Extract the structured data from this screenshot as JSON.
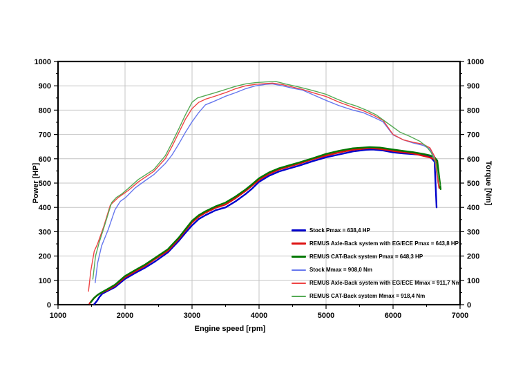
{
  "page": {
    "background": "#ffffff"
  },
  "axes": {
    "xlabel": "Engine speed [rpm]",
    "ylabel_left": "Power [HP]",
    "ylabel_right": "Torque [Nm]"
  },
  "chart_data": {
    "type": "line",
    "title": "",
    "xlabel": "Engine speed [rpm]",
    "ylabel_left": "Power [HP]",
    "ylabel_right": "Torque [Nm]",
    "xlim": [
      1000,
      7000
    ],
    "ylim_left": [
      0,
      1000
    ],
    "ylim_right": [
      0,
      1000
    ],
    "x_ticks": [
      1000,
      2000,
      3000,
      4000,
      5000,
      6000,
      7000
    ],
    "x_minor_step": 500,
    "y_ticks": [
      0,
      100,
      200,
      300,
      400,
      500,
      600,
      700,
      800,
      900,
      1000
    ],
    "y_minor_step": 50,
    "grid": true,
    "grid_color": "#c4c4c4",
    "border_color": "#000000",
    "legend_position": "inside-bottom-right",
    "series": [
      {
        "name": "Stock Pmax = 638,4 HP",
        "axis": "left",
        "unit": "HP",
        "color": "#0000cc",
        "width": 2.4,
        "points": [
          [
            1540,
            2
          ],
          [
            1580,
            15
          ],
          [
            1620,
            32
          ],
          [
            1660,
            45
          ],
          [
            1750,
            58
          ],
          [
            1850,
            72
          ],
          [
            2000,
            106
          ],
          [
            2150,
            130
          ],
          [
            2300,
            152
          ],
          [
            2450,
            178
          ],
          [
            2640,
            215
          ],
          [
            2800,
            262
          ],
          [
            2900,
            295
          ],
          [
            3000,
            326
          ],
          [
            3100,
            352
          ],
          [
            3200,
            368
          ],
          [
            3350,
            388
          ],
          [
            3500,
            400
          ],
          [
            3650,
            425
          ],
          [
            3800,
            455
          ],
          [
            3900,
            478
          ],
          [
            4000,
            505
          ],
          [
            4150,
            530
          ],
          [
            4300,
            548
          ],
          [
            4450,
            560
          ],
          [
            4600,
            572
          ],
          [
            4800,
            590
          ],
          [
            5000,
            606
          ],
          [
            5200,
            618
          ],
          [
            5400,
            630
          ],
          [
            5600,
            637
          ],
          [
            5700,
            638
          ],
          [
            5850,
            634
          ],
          [
            6000,
            626
          ],
          [
            6150,
            622
          ],
          [
            6300,
            619
          ],
          [
            6450,
            615
          ],
          [
            6550,
            610
          ],
          [
            6620,
            588
          ],
          [
            6650,
            400
          ]
        ]
      },
      {
        "name": "REMUS Axle-Back system with EG/ECE Pmax = 643,8 HP",
        "axis": "left",
        "unit": "HP",
        "color": "#dd1111",
        "width": 2.4,
        "points": [
          [
            1470,
            5
          ],
          [
            1520,
            22
          ],
          [
            1580,
            38
          ],
          [
            1640,
            48
          ],
          [
            1750,
            62
          ],
          [
            1850,
            78
          ],
          [
            2000,
            113
          ],
          [
            2150,
            137
          ],
          [
            2300,
            160
          ],
          [
            2450,
            188
          ],
          [
            2640,
            222
          ],
          [
            2800,
            270
          ],
          [
            2900,
            305
          ],
          [
            3000,
            338
          ],
          [
            3100,
            362
          ],
          [
            3200,
            378
          ],
          [
            3350,
            398
          ],
          [
            3500,
            412
          ],
          [
            3650,
            438
          ],
          [
            3800,
            468
          ],
          [
            3900,
            490
          ],
          [
            4000,
            513
          ],
          [
            4150,
            538
          ],
          [
            4300,
            556
          ],
          [
            4450,
            568
          ],
          [
            4600,
            580
          ],
          [
            4800,
            598
          ],
          [
            5000,
            613
          ],
          [
            5200,
            626
          ],
          [
            5400,
            637
          ],
          [
            5650,
            644
          ],
          [
            5800,
            641
          ],
          [
            6000,
            632
          ],
          [
            6150,
            627
          ],
          [
            6300,
            622
          ],
          [
            6450,
            612
          ],
          [
            6550,
            605
          ],
          [
            6620,
            598
          ],
          [
            6650,
            580
          ],
          [
            6690,
            480
          ]
        ]
      },
      {
        "name": "REMUS CAT-Back system Pmax = 648,3 HP",
        "axis": "left",
        "unit": "HP",
        "color": "#007700",
        "width": 2.4,
        "points": [
          [
            1490,
            10
          ],
          [
            1540,
            28
          ],
          [
            1600,
            42
          ],
          [
            1660,
            52
          ],
          [
            1750,
            66
          ],
          [
            1850,
            82
          ],
          [
            2000,
            118
          ],
          [
            2150,
            142
          ],
          [
            2300,
            165
          ],
          [
            2450,
            193
          ],
          [
            2640,
            228
          ],
          [
            2800,
            275
          ],
          [
            2900,
            310
          ],
          [
            3000,
            345
          ],
          [
            3100,
            368
          ],
          [
            3200,
            384
          ],
          [
            3350,
            404
          ],
          [
            3500,
            420
          ],
          [
            3650,
            445
          ],
          [
            3800,
            474
          ],
          [
            3900,
            496
          ],
          [
            4000,
            520
          ],
          [
            4150,
            544
          ],
          [
            4300,
            561
          ],
          [
            4450,
            573
          ],
          [
            4600,
            585
          ],
          [
            4800,
            602
          ],
          [
            5000,
            620
          ],
          [
            5200,
            633
          ],
          [
            5400,
            643
          ],
          [
            5650,
            648
          ],
          [
            5800,
            646
          ],
          [
            6000,
            638
          ],
          [
            6150,
            632
          ],
          [
            6300,
            627
          ],
          [
            6450,
            620
          ],
          [
            6550,
            614
          ],
          [
            6620,
            606
          ],
          [
            6660,
            592
          ],
          [
            6710,
            475
          ]
        ]
      },
      {
        "name": "Stock Mmax = 908,0 Nm",
        "axis": "right",
        "unit": "Nm",
        "color": "#6677ee",
        "width": 1.4,
        "points": [
          [
            1555,
            90
          ],
          [
            1590,
            170
          ],
          [
            1650,
            242
          ],
          [
            1750,
            310
          ],
          [
            1850,
            390
          ],
          [
            1930,
            425
          ],
          [
            2010,
            441
          ],
          [
            2150,
            480
          ],
          [
            2300,
            510
          ],
          [
            2430,
            535
          ],
          [
            2600,
            580
          ],
          [
            2700,
            615
          ],
          [
            2800,
            660
          ],
          [
            2900,
            708
          ],
          [
            3000,
            752
          ],
          [
            3100,
            790
          ],
          [
            3200,
            822
          ],
          [
            3300,
            833
          ],
          [
            3400,
            845
          ],
          [
            3500,
            857
          ],
          [
            3650,
            872
          ],
          [
            3800,
            888
          ],
          [
            3950,
            900
          ],
          [
            4100,
            906
          ],
          [
            4200,
            908
          ],
          [
            4350,
            900
          ],
          [
            4500,
            890
          ],
          [
            4650,
            882
          ],
          [
            4800,
            864
          ],
          [
            5000,
            840
          ],
          [
            5200,
            818
          ],
          [
            5400,
            800
          ],
          [
            5550,
            790
          ],
          [
            5700,
            772
          ],
          [
            5850,
            752
          ],
          [
            6000,
            698
          ],
          [
            6150,
            678
          ],
          [
            6300,
            665
          ],
          [
            6450,
            655
          ],
          [
            6550,
            640
          ],
          [
            6620,
            600
          ],
          [
            6670,
            500
          ]
        ]
      },
      {
        "name": "REMUS Axle-Back system with EG/ECE Mmax = 911,7 Nm",
        "axis": "right",
        "unit": "Nm",
        "color": "#ee4444",
        "width": 1.4,
        "points": [
          [
            1455,
            55
          ],
          [
            1490,
            140
          ],
          [
            1540,
            220
          ],
          [
            1590,
            250
          ],
          [
            1680,
            320
          ],
          [
            1780,
            410
          ],
          [
            1900,
            441
          ],
          [
            2050,
            470
          ],
          [
            2200,
            505
          ],
          [
            2430,
            548
          ],
          [
            2600,
            600
          ],
          [
            2700,
            650
          ],
          [
            2800,
            706
          ],
          [
            2900,
            762
          ],
          [
            3000,
            806
          ],
          [
            3100,
            832
          ],
          [
            3200,
            845
          ],
          [
            3350,
            858
          ],
          [
            3500,
            872
          ],
          [
            3650,
            888
          ],
          [
            3800,
            900
          ],
          [
            3950,
            906
          ],
          [
            4100,
            909
          ],
          [
            4200,
            911
          ],
          [
            4350,
            905
          ],
          [
            4500,
            895
          ],
          [
            4650,
            885
          ],
          [
            4800,
            872
          ],
          [
            5000,
            856
          ],
          [
            5200,
            832
          ],
          [
            5400,
            812
          ],
          [
            5550,
            798
          ],
          [
            5700,
            780
          ],
          [
            5850,
            758
          ],
          [
            6000,
            700
          ],
          [
            6150,
            678
          ],
          [
            6300,
            668
          ],
          [
            6450,
            660
          ],
          [
            6550,
            645
          ],
          [
            6620,
            610
          ],
          [
            6680,
            485
          ]
        ]
      },
      {
        "name": "REMUS CAT-Back system Mmax = 918,4 Nm",
        "axis": "right",
        "unit": "Nm",
        "color": "#55aa55",
        "width": 1.4,
        "points": [
          [
            1520,
            105
          ],
          [
            1560,
            200
          ],
          [
            1610,
            252
          ],
          [
            1700,
            330
          ],
          [
            1800,
            420
          ],
          [
            1870,
            441
          ],
          [
            1950,
            455
          ],
          [
            2050,
            478
          ],
          [
            2200,
            515
          ],
          [
            2430,
            556
          ],
          [
            2600,
            612
          ],
          [
            2700,
            665
          ],
          [
            2800,
            722
          ],
          [
            2900,
            780
          ],
          [
            3000,
            832
          ],
          [
            3080,
            850
          ],
          [
            3200,
            860
          ],
          [
            3350,
            872
          ],
          [
            3500,
            885
          ],
          [
            3650,
            898
          ],
          [
            3800,
            908
          ],
          [
            3950,
            913
          ],
          [
            4100,
            916
          ],
          [
            4250,
            918
          ],
          [
            4400,
            907
          ],
          [
            4550,
            898
          ],
          [
            4700,
            888
          ],
          [
            4850,
            877
          ],
          [
            5000,
            865
          ],
          [
            5150,
            847
          ],
          [
            5300,
            830
          ],
          [
            5450,
            817
          ],
          [
            5600,
            800
          ],
          [
            5750,
            780
          ],
          [
            5900,
            750
          ],
          [
            6000,
            730
          ],
          [
            6100,
            710
          ],
          [
            6250,
            692
          ],
          [
            6400,
            672
          ],
          [
            6500,
            650
          ],
          [
            6570,
            625
          ],
          [
            6640,
            580
          ],
          [
            6700,
            490
          ]
        ]
      }
    ]
  }
}
